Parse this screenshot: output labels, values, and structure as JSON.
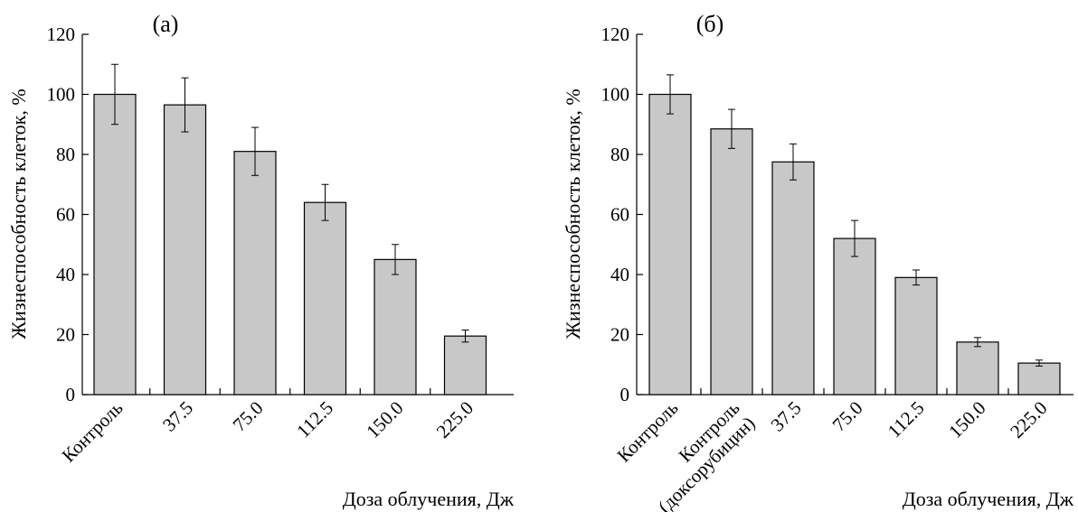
{
  "chart_data": [
    {
      "type": "bar",
      "panel_label": "(а)",
      "xlabel": "Доза облучения, Дж",
      "ylabel": "Жизнеспособность клеток, %",
      "ylim": [
        0,
        120
      ],
      "yticks": [
        0,
        20,
        40,
        60,
        80,
        100,
        120
      ],
      "categories": [
        [
          "Контроль"
        ],
        [
          "37.5"
        ],
        [
          "75.0"
        ],
        [
          "112.5"
        ],
        [
          "150.0"
        ],
        [
          "225.0"
        ]
      ],
      "values": [
        100,
        96.5,
        81,
        64,
        45,
        19.5
      ],
      "errors": [
        10,
        9,
        8,
        6,
        5,
        2
      ],
      "bar_color": "#c8c8c8",
      "grid": false
    },
    {
      "type": "bar",
      "panel_label": "(б)",
      "xlabel": "Доза облучения, Дж",
      "ylabel": "Жизнеспособность клеток, %",
      "ylim": [
        0,
        120
      ],
      "yticks": [
        0,
        20,
        40,
        60,
        80,
        100,
        120
      ],
      "categories": [
        [
          "Контроль"
        ],
        [
          "Контроль",
          "(доксорубицин)"
        ],
        [
          "37.5"
        ],
        [
          "75.0"
        ],
        [
          "112.5"
        ],
        [
          "150.0"
        ],
        [
          "225.0"
        ]
      ],
      "values": [
        100,
        88.5,
        77.5,
        52,
        39,
        17.5,
        10.5
      ],
      "errors": [
        6.5,
        6.5,
        6,
        6,
        2.5,
        1.5,
        1
      ],
      "bar_color": "#c8c8c8",
      "grid": false
    }
  ]
}
